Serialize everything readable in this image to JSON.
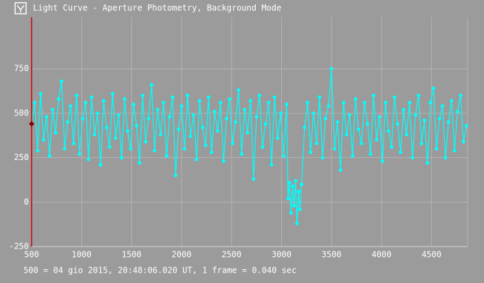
{
  "chart_data": {
    "type": "line",
    "title": "Light Curve - Aperture Photometry, Background Mode",
    "footer": "500 = 04 gio 2015, 20:48:06.020 UT, 1 frame = 0.040 sec",
    "xlim": [
      500,
      4860
    ],
    "ylim": [
      -250,
      1040
    ],
    "xticks": [
      500,
      1000,
      1500,
      2000,
      2500,
      3000,
      3500,
      4000,
      4500
    ],
    "yticks": [
      -250,
      0,
      250,
      500,
      750
    ],
    "grid": true,
    "cursor": {
      "x": 500,
      "y": 440,
      "color": "#cc0000"
    },
    "series": [
      {
        "color": "#00ffff",
        "x": [
          500,
          530,
          560,
          590,
          620,
          650,
          680,
          710,
          740,
          770,
          800,
          830,
          860,
          890,
          920,
          950,
          980,
          1010,
          1040,
          1070,
          1100,
          1130,
          1160,
          1190,
          1220,
          1250,
          1280,
          1310,
          1340,
          1370,
          1400,
          1430,
          1460,
          1490,
          1520,
          1550,
          1580,
          1610,
          1640,
          1670,
          1700,
          1730,
          1760,
          1790,
          1820,
          1850,
          1880,
          1910,
          1940,
          1970,
          2000,
          2030,
          2060,
          2090,
          2120,
          2150,
          2180,
          2210,
          2240,
          2270,
          2300,
          2330,
          2360,
          2390,
          2420,
          2450,
          2480,
          2510,
          2540,
          2570,
          2600,
          2630,
          2660,
          2690,
          2720,
          2750,
          2780,
          2810,
          2840,
          2870,
          2900,
          2930,
          2960,
          2990,
          3020,
          3050,
          3065,
          3080,
          3095,
          3110,
          3125,
          3140,
          3155,
          3170,
          3185,
          3200,
          3230,
          3260,
          3290,
          3320,
          3350,
          3380,
          3410,
          3440,
          3470,
          3500,
          3530,
          3560,
          3590,
          3620,
          3650,
          3680,
          3710,
          3740,
          3770,
          3800,
          3830,
          3860,
          3890,
          3920,
          3950,
          3980,
          4010,
          4040,
          4070,
          4100,
          4130,
          4160,
          4190,
          4220,
          4250,
          4280,
          4310,
          4340,
          4370,
          4400,
          4430,
          4460,
          4490,
          4520,
          4550,
          4580,
          4610,
          4640,
          4670,
          4700,
          4730,
          4760,
          4790,
          4820,
          4850
        ],
        "values": [
          440,
          560,
          290,
          610,
          350,
          480,
          260,
          520,
          390,
          580,
          680,
          300,
          450,
          540,
          330,
          600,
          270,
          470,
          560,
          240,
          590,
          380,
          500,
          210,
          570,
          420,
          310,
          610,
          360,
          490,
          250,
          580,
          400,
          300,
          550,
          430,
          220,
          600,
          340,
          470,
          660,
          290,
          520,
          380,
          560,
          260,
          480,
          590,
          150,
          410,
          540,
          300,
          600,
          370,
          490,
          240,
          570,
          420,
          320,
          590,
          280,
          510,
          400,
          560,
          230,
          470,
          580,
          330,
          450,
          630,
          270,
          520,
          390,
          570,
          130,
          480,
          600,
          310,
          440,
          560,
          210,
          590,
          360,
          500,
          260,
          550,
          20,
          110,
          -60,
          90,
          -20,
          120,
          -120,
          60,
          -40,
          100,
          420,
          560,
          280,
          500,
          330,
          590,
          250,
          470,
          540,
          750,
          300,
          450,
          180,
          560,
          380,
          490,
          260,
          580,
          410,
          330,
          560,
          440,
          270,
          600,
          350,
          480,
          230,
          560,
          400,
          310,
          590,
          440,
          280,
          520,
          380,
          560,
          250,
          490,
          600,
          330,
          460,
          220,
          560,
          640,
          300,
          470,
          540,
          250,
          450,
          570,
          290,
          510,
          600,
          340,
          430
        ]
      }
    ]
  }
}
